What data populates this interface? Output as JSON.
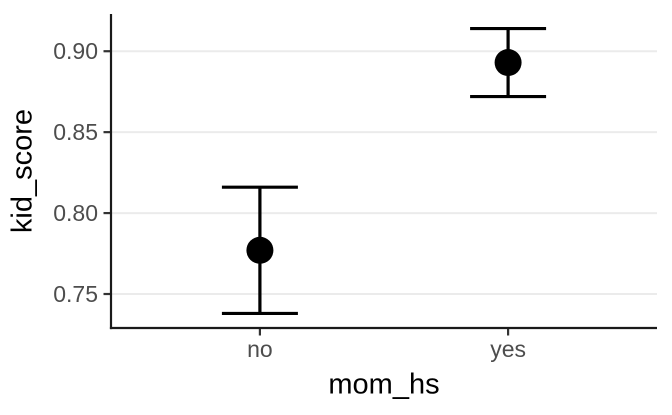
{
  "figure": {
    "background": "#ffffff"
  },
  "chart_data": {
    "type": "pointrange",
    "title": "",
    "xlabel": "mom_hs",
    "ylabel": "kid_score",
    "categories": [
      "no",
      "yes"
    ],
    "series": [
      {
        "name": "kid_score",
        "points": [
          {
            "category": "no",
            "estimate": 0.777,
            "lower": 0.738,
            "upper": 0.816
          },
          {
            "category": "yes",
            "estimate": 0.893,
            "lower": 0.872,
            "upper": 0.914
          }
        ]
      }
    ],
    "yticks": [
      0.75,
      0.8,
      0.85,
      0.9
    ],
    "ytick_labels": [
      "0.75",
      "0.80",
      "0.85",
      "0.90"
    ],
    "ylim": [
      0.729,
      0.923
    ],
    "grid": "horizontal-major-only",
    "legend": "none",
    "colors": {
      "point": "#000000",
      "range_line": "#000000",
      "axis_line": "#1a1a1a",
      "tick_mark": "#333333",
      "grid_line": "#ebebeb",
      "tick_label": "#4d4d4d",
      "axis_title": "#000000",
      "background": "#ffffff"
    }
  }
}
